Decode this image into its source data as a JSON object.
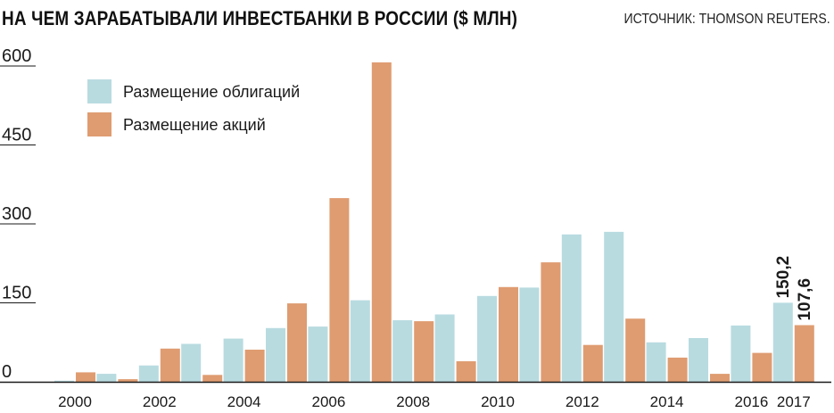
{
  "header": {
    "title": "НА ЧЕМ ЗАРАБАТЫВАЛИ ИНВЕСТБАНКИ В РОССИИ ($ МЛН)",
    "source": "ИСТОЧНИК: THOMSON REUTERS."
  },
  "colors": {
    "bonds": "#b8dbe0",
    "equity": "#df9c71",
    "axis": "#1a1a1a"
  },
  "chart_data": {
    "type": "bar",
    "title": "НА ЧЕМ ЗАРАБАТЫВАЛИ ИНВЕСТБАНКИ В РОССИИ ($ МЛН)",
    "categories": [
      "2000",
      "2001",
      "2002",
      "2003",
      "2004",
      "2005",
      "2006",
      "2007",
      "2008",
      "2009",
      "2010",
      "2011",
      "2012",
      "2013",
      "2014",
      "2015",
      "2016",
      "2017"
    ],
    "x_tick_labels": [
      "2000",
      "",
      "2002",
      "",
      "2004",
      "",
      "2006",
      "",
      "2008",
      "",
      "2010",
      "",
      "2012",
      "",
      "2014",
      "",
      "2016",
      "2017"
    ],
    "series": [
      {
        "name": "Размещение облигаций",
        "color": "#b8dbe0",
        "values": [
          2,
          15,
          31,
          72,
          82,
          102,
          105,
          155,
          117,
          128,
          163,
          179,
          280,
          285,
          75,
          83,
          107,
          150.2
        ]
      },
      {
        "name": "Размещение акций",
        "color": "#df9c71",
        "values": [
          18,
          5,
          63,
          13,
          61,
          149,
          349,
          607,
          115,
          39,
          180,
          227,
          70,
          120,
          46,
          15,
          55,
          107.6
        ]
      }
    ],
    "data_labels": [
      {
        "category": "2017",
        "series": "Размещение облигаций",
        "text": "150,2"
      },
      {
        "category": "2017",
        "series": "Размещение акций",
        "text": "107,6"
      }
    ],
    "y_ticks": [
      0,
      150,
      300,
      450,
      600
    ],
    "ylim": [
      0,
      620
    ],
    "grid": false,
    "legend": "top-left"
  }
}
